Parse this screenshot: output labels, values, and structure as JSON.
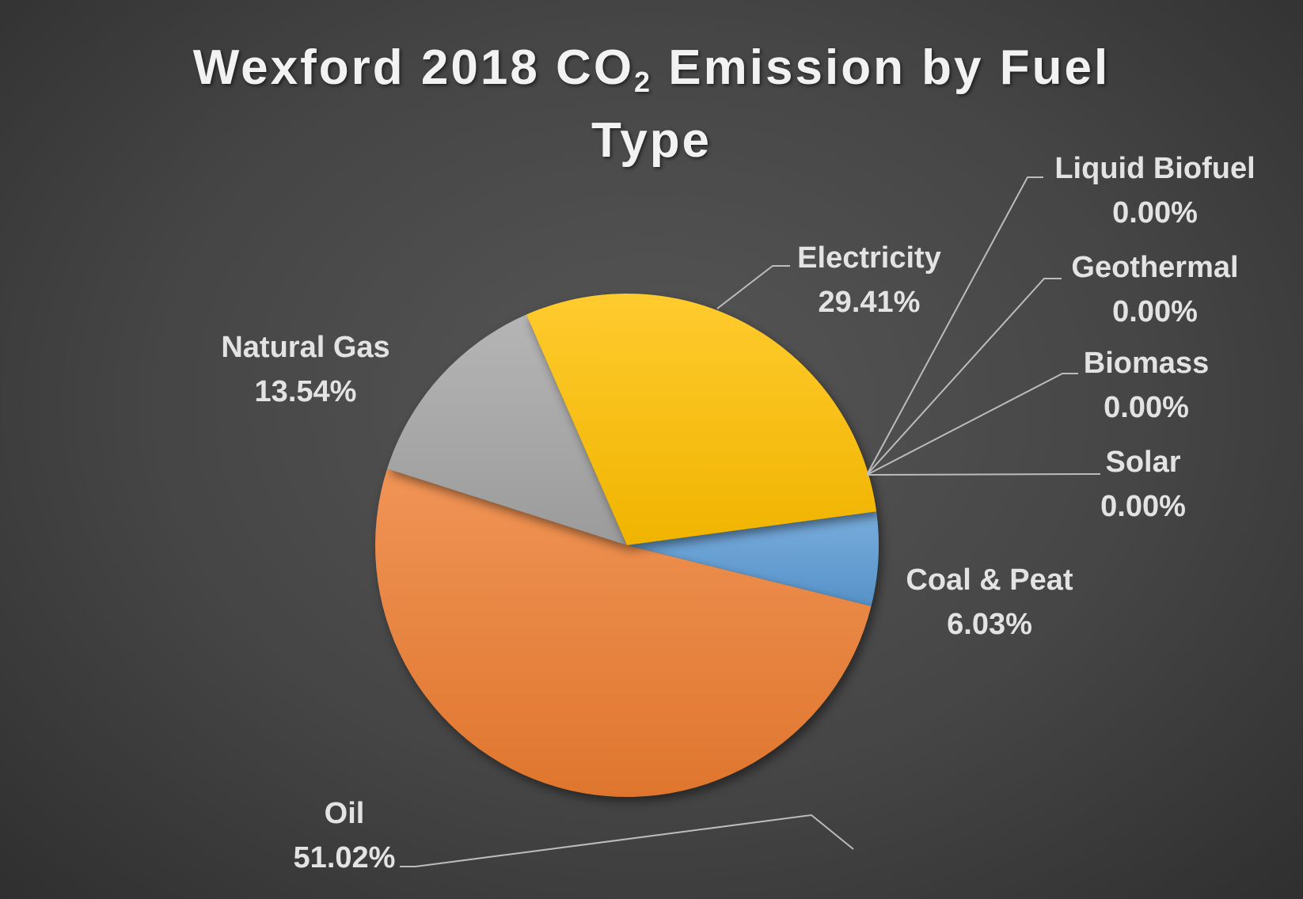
{
  "chart_data": {
    "type": "pie",
    "title": {
      "line1_before": "Wexford 2018 CO",
      "subscript": "2",
      "line1_after": " Emission by Fuel",
      "line2": "Type"
    },
    "slices": [
      {
        "label": "Coal & Peat",
        "value": 6.03,
        "display": "6.03%",
        "color": "#5b9bd5"
      },
      {
        "label": "Oil",
        "value": 51.02,
        "display": "51.02%",
        "color": "#ed7d31"
      },
      {
        "label": "Natural Gas",
        "value": 13.54,
        "display": "13.54%",
        "color": "#a5a5a5"
      },
      {
        "label": "Electricity",
        "value": 29.41,
        "display": "29.41%",
        "color": "#ffc000"
      },
      {
        "label": "Liquid Biofuel",
        "value": 0.0,
        "display": "0.00%",
        "color": "#4472c4"
      },
      {
        "label": "Geothermal",
        "value": 0.0,
        "display": "0.00%",
        "color": "#70ad47"
      },
      {
        "label": "Biomass",
        "value": 0.0,
        "display": "0.00%",
        "color": "#264478"
      },
      {
        "label": "Solar",
        "value": 0.0,
        "display": "0.00%",
        "color": "#9e480e"
      }
    ],
    "legend": "none",
    "data_labels": "category name and percentage, outside with leader lines",
    "background_color": "#474747"
  }
}
